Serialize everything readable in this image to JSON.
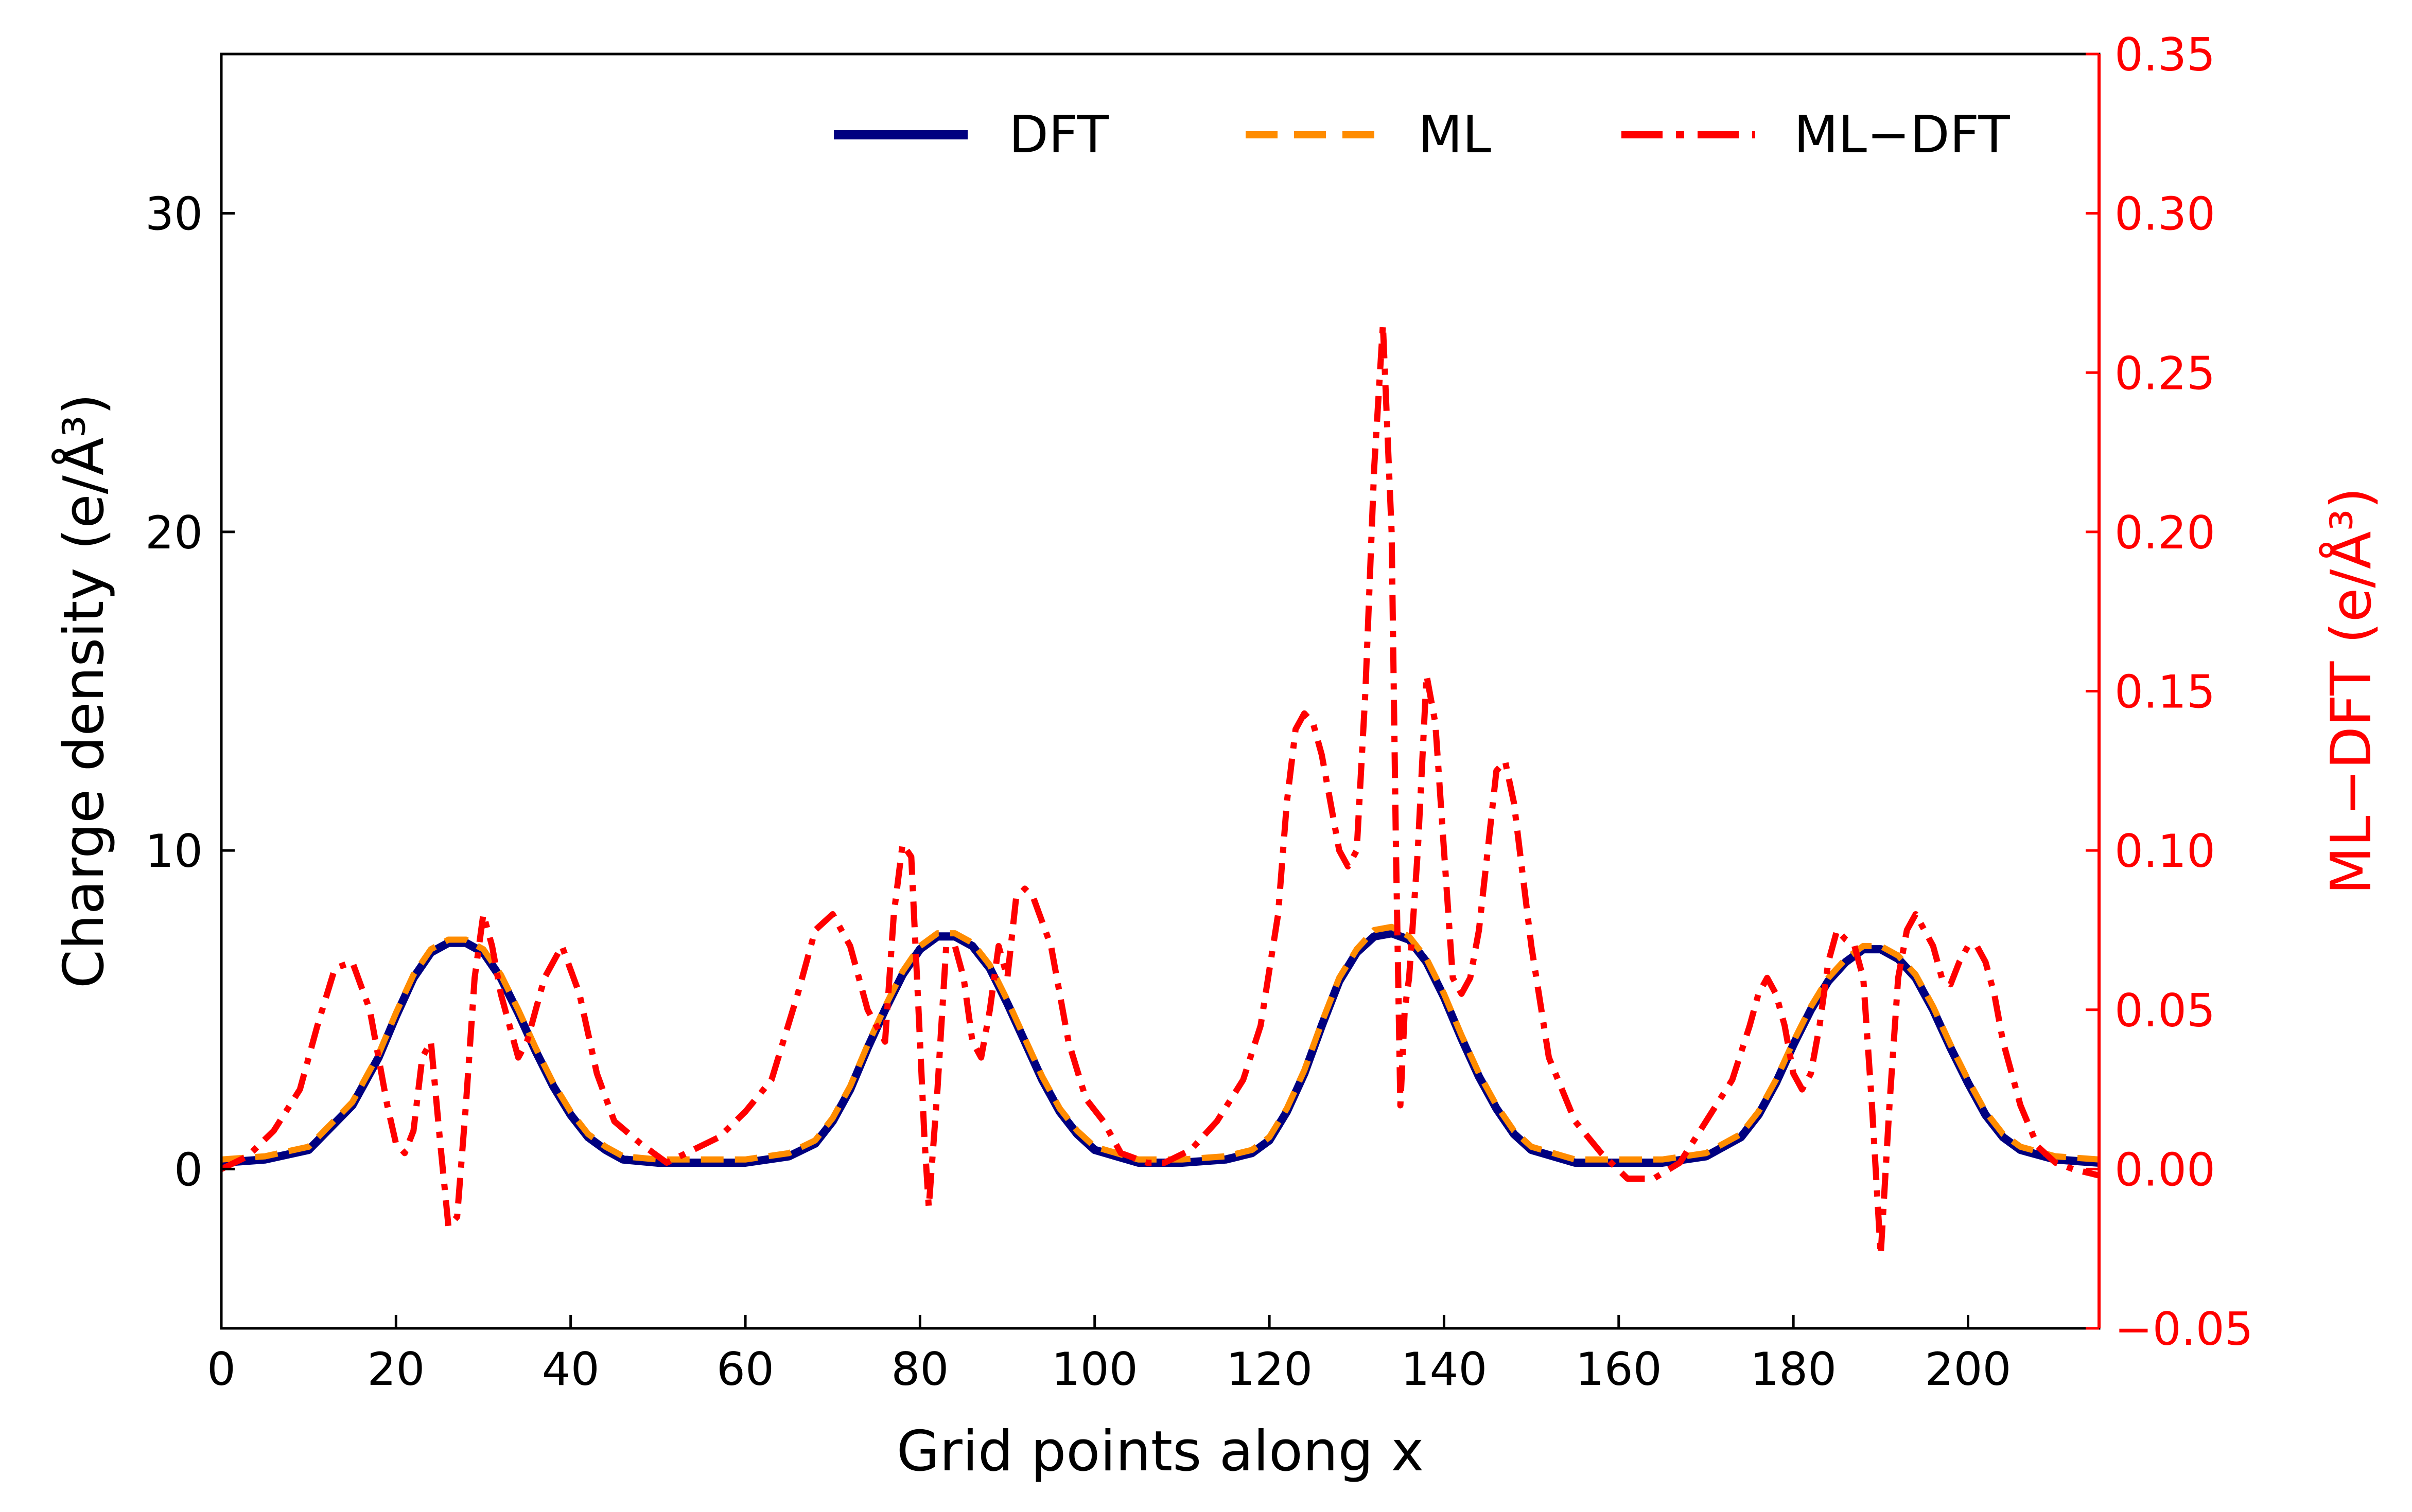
{
  "chart_data": {
    "type": "line",
    "xlabel": "Grid points along x",
    "ylabel_left": "Charge density (e/Å³)",
    "ylabel_right": "ML−DFT (e/Å³)",
    "xlim": [
      0,
      215
    ],
    "ylim_left": [
      -5,
      35
    ],
    "ylim_right": [
      -0.05,
      0.35
    ],
    "x_ticks": [
      0,
      20,
      40,
      60,
      80,
      100,
      120,
      140,
      160,
      180,
      200
    ],
    "y_ticks_left": [
      0,
      10,
      20,
      30
    ],
    "y_ticks_right": [
      "−0.05",
      "0.00",
      "0.05",
      "0.10",
      "0.15",
      "0.20",
      "0.25",
      "0.30",
      "0.35"
    ],
    "grid": false,
    "legend_position": "top-right",
    "colors": {
      "dft": "#000080",
      "ml": "#ff8c00",
      "diff": "#ff0000",
      "right_axis": "#ff0000"
    },
    "series": [
      {
        "name": "DFT",
        "axis": "left",
        "style": "solid",
        "x": [
          0,
          5,
          10,
          15,
          18,
          20,
          22,
          24,
          26,
          28,
          30,
          32,
          34,
          36,
          38,
          40,
          42,
          44,
          46,
          50,
          55,
          60,
          65,
          68,
          70,
          72,
          74,
          76,
          78,
          80,
          82,
          84,
          86,
          88,
          90,
          92,
          94,
          96,
          98,
          100,
          105,
          110,
          115,
          118,
          120,
          122,
          124,
          126,
          128,
          130,
          132,
          134,
          136,
          138,
          140,
          142,
          144,
          146,
          148,
          150,
          155,
          160,
          165,
          170,
          174,
          176,
          178,
          180,
          182,
          184,
          186,
          188,
          190,
          192,
          194,
          196,
          198,
          200,
          202,
          204,
          206,
          210,
          215
        ],
        "y": [
          0.2,
          0.3,
          0.6,
          2.0,
          3.5,
          4.8,
          6.0,
          6.8,
          7.1,
          7.1,
          6.8,
          6.0,
          4.9,
          3.7,
          2.6,
          1.7,
          1.0,
          0.6,
          0.3,
          0.2,
          0.2,
          0.2,
          0.4,
          0.8,
          1.5,
          2.5,
          3.8,
          5.0,
          6.1,
          6.9,
          7.3,
          7.3,
          7.0,
          6.3,
          5.2,
          4.0,
          2.8,
          1.8,
          1.1,
          0.6,
          0.2,
          0.2,
          0.3,
          0.5,
          0.9,
          1.8,
          3.0,
          4.5,
          5.9,
          6.8,
          7.3,
          7.4,
          7.2,
          6.5,
          5.4,
          4.1,
          2.9,
          1.9,
          1.1,
          0.6,
          0.2,
          0.2,
          0.2,
          0.4,
          1.0,
          1.7,
          2.7,
          3.9,
          5.0,
          5.9,
          6.5,
          6.9,
          6.9,
          6.6,
          6.0,
          5.0,
          3.8,
          2.7,
          1.7,
          1.0,
          0.6,
          0.3,
          0.2
        ]
      },
      {
        "name": "ML",
        "axis": "left",
        "style": "dashed",
        "x": [
          0,
          5,
          10,
          15,
          18,
          20,
          22,
          24,
          26,
          28,
          30,
          32,
          34,
          36,
          38,
          40,
          42,
          44,
          46,
          50,
          55,
          60,
          65,
          68,
          70,
          72,
          74,
          76,
          78,
          80,
          82,
          84,
          86,
          88,
          90,
          92,
          94,
          96,
          98,
          100,
          105,
          110,
          115,
          118,
          120,
          122,
          124,
          126,
          128,
          130,
          132,
          134,
          136,
          138,
          140,
          142,
          144,
          146,
          148,
          150,
          155,
          160,
          165,
          170,
          174,
          176,
          178,
          180,
          182,
          184,
          186,
          188,
          190,
          192,
          194,
          196,
          198,
          200,
          202,
          204,
          206,
          210,
          215
        ],
        "y": [
          0.3,
          0.4,
          0.7,
          2.1,
          3.6,
          4.9,
          6.1,
          6.9,
          7.2,
          7.2,
          6.9,
          6.1,
          5.0,
          3.8,
          2.7,
          1.8,
          1.1,
          0.7,
          0.4,
          0.3,
          0.3,
          0.3,
          0.5,
          0.9,
          1.6,
          2.6,
          3.9,
          5.1,
          6.2,
          7.0,
          7.4,
          7.4,
          7.1,
          6.4,
          5.3,
          4.1,
          2.9,
          1.9,
          1.2,
          0.7,
          0.3,
          0.3,
          0.4,
          0.6,
          1.0,
          1.9,
          3.1,
          4.6,
          6.0,
          6.9,
          7.5,
          7.6,
          7.3,
          6.6,
          5.5,
          4.2,
          3.0,
          2.0,
          1.2,
          0.7,
          0.3,
          0.3,
          0.3,
          0.5,
          1.1,
          1.8,
          2.8,
          4.0,
          5.1,
          6.0,
          6.6,
          7.0,
          7.0,
          6.7,
          6.1,
          5.1,
          3.9,
          2.8,
          1.8,
          1.1,
          0.7,
          0.4,
          0.3
        ]
      },
      {
        "name": "ML−DFT",
        "axis": "right",
        "style": "dashdot",
        "x": [
          0,
          3,
          6,
          9,
          11,
          13,
          15,
          17,
          19,
          20,
          21,
          22,
          23,
          24,
          25,
          26,
          27,
          28,
          29,
          30,
          31,
          32,
          33,
          34,
          35,
          36,
          37,
          39,
          41,
          43,
          45,
          48,
          51,
          54,
          57,
          60,
          63,
          66,
          68,
          70,
          72,
          74,
          75,
          76,
          77,
          78,
          79,
          80,
          80.5,
          81,
          82,
          83,
          84,
          85,
          86,
          87,
          88,
          89,
          90,
          91,
          92,
          93,
          95,
          97,
          99,
          101,
          103,
          106,
          108,
          111,
          114,
          117,
          119,
          121,
          122,
          123,
          124,
          125,
          126,
          127,
          128,
          129,
          130,
          131,
          132,
          133,
          134,
          134.5,
          135,
          135.5,
          136,
          137,
          138,
          139,
          140,
          141,
          142,
          143,
          144,
          145,
          146,
          147,
          148,
          150,
          152,
          155,
          158,
          161,
          164,
          167,
          170,
          173,
          175,
          176,
          177,
          178,
          179,
          180,
          181,
          182,
          183,
          184,
          185,
          186,
          187,
          188,
          189,
          190,
          191,
          192,
          193,
          194,
          195,
          196,
          197,
          198,
          199,
          200,
          201,
          202,
          203,
          204,
          206,
          208,
          210,
          212,
          215
        ],
        "y": [
          0.0,
          0.004,
          0.012,
          0.025,
          0.045,
          0.063,
          0.065,
          0.05,
          0.02,
          0.008,
          0.005,
          0.012,
          0.035,
          0.04,
          0.01,
          -0.018,
          -0.015,
          0.02,
          0.06,
          0.08,
          0.07,
          0.055,
          0.045,
          0.035,
          0.04,
          0.05,
          0.06,
          0.07,
          0.055,
          0.03,
          0.015,
          0.008,
          0.002,
          0.006,
          0.01,
          0.018,
          0.028,
          0.055,
          0.075,
          0.08,
          0.07,
          0.05,
          0.045,
          0.04,
          0.08,
          0.102,
          0.098,
          0.04,
          0.01,
          -0.012,
          0.025,
          0.07,
          0.07,
          0.06,
          0.04,
          0.035,
          0.05,
          0.07,
          0.06,
          0.085,
          0.088,
          0.085,
          0.07,
          0.04,
          0.022,
          0.015,
          0.005,
          0.002,
          0.002,
          0.006,
          0.015,
          0.028,
          0.045,
          0.08,
          0.115,
          0.138,
          0.143,
          0.14,
          0.13,
          0.115,
          0.1,
          0.095,
          0.1,
          0.15,
          0.22,
          0.265,
          0.2,
          0.1,
          0.02,
          0.05,
          0.06,
          0.1,
          0.155,
          0.14,
          0.1,
          0.06,
          0.055,
          0.06,
          0.075,
          0.1,
          0.125,
          0.128,
          0.115,
          0.07,
          0.035,
          0.015,
          0.005,
          -0.003,
          -0.003,
          0.002,
          0.015,
          0.028,
          0.045,
          0.055,
          0.06,
          0.055,
          0.045,
          0.03,
          0.025,
          0.03,
          0.045,
          0.065,
          0.075,
          0.072,
          0.07,
          0.06,
          0.02,
          -0.027,
          0.02,
          0.06,
          0.075,
          0.08,
          0.075,
          0.07,
          0.06,
          0.058,
          0.065,
          0.07,
          0.07,
          0.065,
          0.055,
          0.04,
          0.02,
          0.007,
          0.002,
          0.0,
          -0.002
        ]
      }
    ]
  }
}
